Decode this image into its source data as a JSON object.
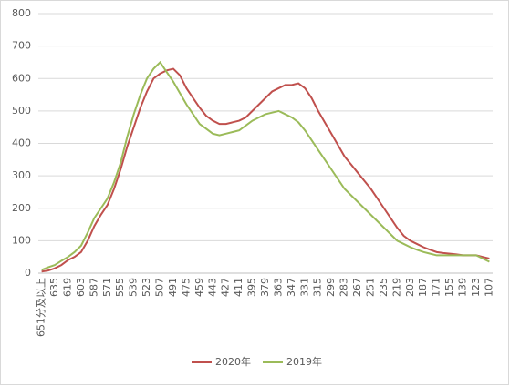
{
  "chart_data": {
    "type": "line",
    "categories": [
      "651分及以上",
      null,
      "635",
      null,
      "619",
      null,
      "603",
      null,
      "587",
      null,
      "571",
      null,
      "555",
      null,
      "539",
      null,
      "523",
      null,
      "507",
      null,
      "491",
      null,
      "475",
      null,
      "459",
      null,
      "443",
      null,
      "427",
      null,
      "411",
      null,
      "395",
      null,
      "379",
      null,
      "363",
      null,
      "347",
      null,
      "331",
      null,
      "315",
      null,
      "299",
      null,
      "283",
      null,
      "267",
      null,
      "251",
      null,
      "235",
      null,
      "219",
      null,
      "203",
      null,
      "187",
      null,
      "171",
      null,
      "155",
      null,
      "139",
      null,
      "123",
      null,
      "107"
    ],
    "series": [
      {
        "name": "2020年",
        "color": "#c0504d",
        "values": [
          5,
          8,
          15,
          25,
          40,
          50,
          65,
          100,
          145,
          180,
          210,
          260,
          320,
          390,
          450,
          510,
          560,
          600,
          615,
          625,
          630,
          610,
          570,
          540,
          510,
          485,
          470,
          460,
          460,
          465,
          470,
          480,
          500,
          520,
          540,
          560,
          570,
          580,
          580,
          585,
          570,
          540,
          500,
          465,
          430,
          395,
          360,
          335,
          310,
          285,
          260,
          230,
          200,
          170,
          140,
          115,
          100,
          90,
          80,
          72,
          65,
          62,
          60,
          58,
          55,
          55,
          55,
          50,
          45
        ]
      },
      {
        "name": "2019年",
        "color": "#9bbb59",
        "values": [
          10,
          18,
          25,
          38,
          50,
          65,
          85,
          125,
          170,
          200,
          230,
          280,
          340,
          420,
          490,
          550,
          600,
          630,
          650,
          620,
          590,
          555,
          520,
          490,
          460,
          445,
          430,
          425,
          430,
          435,
          440,
          455,
          470,
          480,
          490,
          495,
          500,
          490,
          480,
          465,
          440,
          410,
          380,
          350,
          320,
          290,
          260,
          240,
          220,
          200,
          180,
          160,
          140,
          120,
          100,
          90,
          80,
          72,
          65,
          60,
          55,
          55,
          55,
          55,
          55,
          55,
          55,
          45,
          35
        ]
      }
    ],
    "ylim": [
      0,
      800
    ],
    "yticks": [
      0,
      100,
      200,
      300,
      400,
      500,
      600,
      700,
      800
    ],
    "grid": true,
    "legend": "bottom"
  }
}
